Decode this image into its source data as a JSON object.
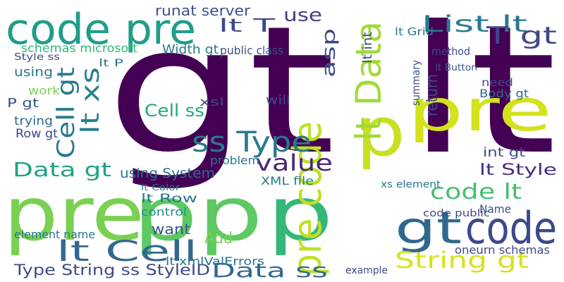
{
  "words": [
    "gt lt",
    "code pre",
    "pre",
    "pp",
    "p",
    "gt",
    "code",
    "p",
    "pre",
    "pre code",
    "lt Data",
    "Cell gt",
    "lt xs",
    "ss Type",
    "lt Cell",
    "Type String ss StyleID",
    "Data ss",
    "String gt",
    "List lt",
    "T gt",
    "value",
    "Data gt",
    "lt Style",
    "code lt",
    "runat server",
    "using System",
    "use",
    "lt T",
    "Cell ss",
    "schemas microsoft",
    "Width gt",
    "public class",
    "lt Grid",
    "asp",
    "lt xmlValErrors",
    "Add",
    "element name",
    "lt Row",
    "want",
    "control",
    "XML file",
    "problem",
    "int gt",
    "Body gt",
    "example",
    "using",
    "P gt",
    "Row gt",
    "trying",
    "return",
    "Name",
    "xs element",
    "code public",
    "oneurn schemas",
    "lt P",
    "lt int",
    "method",
    "summary",
    "work",
    "xsl",
    "will",
    "need",
    "lt Button",
    "Style ss",
    "lt Color"
  ]
}
